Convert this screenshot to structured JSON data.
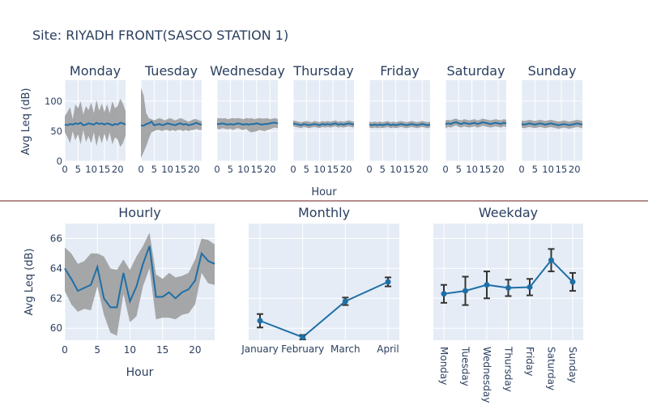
{
  "title": "Site: RIYADH FRONT(SASCO STATION 1)",
  "colors": {
    "line": "#1f6fa6",
    "band": "#9a9a9a",
    "panel_bg": "#e5ecf6",
    "grid": "#ffffff",
    "text": "#2a3f5f",
    "separator": "#6b1a1a",
    "error_bar": "#333333"
  },
  "chart_data": [
    {
      "type": "line",
      "name": "daily-small-multiples",
      "ylabel": "Avg Leq (dB)",
      "xlabel": "Hour",
      "xlim": [
        0,
        23
      ],
      "ylim": [
        0,
        135
      ],
      "xticks": [
        0,
        5,
        10,
        15,
        20
      ],
      "yticks": [
        0,
        50,
        100
      ],
      "x": [
        0,
        1,
        2,
        3,
        4,
        5,
        6,
        7,
        8,
        9,
        10,
        11,
        12,
        13,
        14,
        15,
        16,
        17,
        18,
        19,
        20,
        21,
        22,
        23
      ],
      "panels": [
        {
          "label": "Monday",
          "mean": [
            61,
            60,
            62,
            61,
            63,
            62,
            64,
            60,
            61,
            63,
            62,
            61,
            64,
            62,
            63,
            61,
            63,
            62,
            60,
            62,
            61,
            64,
            63,
            61
          ],
          "upper": [
            75,
            82,
            90,
            70,
            95,
            88,
            100,
            78,
            92,
            85,
            98,
            80,
            102,
            84,
            96,
            82,
            95,
            80,
            100,
            88,
            92,
            104,
            96,
            84
          ],
          "lower": [
            48,
            40,
            30,
            50,
            35,
            45,
            28,
            52,
            32,
            42,
            30,
            48,
            25,
            44,
            30,
            46,
            32,
            48,
            28,
            40,
            36,
            24,
            30,
            42
          ]
        },
        {
          "label": "Tuesday",
          "mean": [
            60,
            59,
            62,
            63,
            66,
            60,
            61,
            62,
            60,
            61,
            63,
            62,
            61,
            60,
            62,
            63,
            61,
            62,
            60,
            61,
            62,
            64,
            62,
            61
          ],
          "upper": [
            122,
            110,
            80,
            72,
            70,
            68,
            70,
            72,
            70,
            68,
            70,
            72,
            70,
            68,
            70,
            72,
            70,
            68,
            66,
            68,
            70,
            70,
            68,
            67
          ],
          "lower": [
            5,
            15,
            25,
            38,
            48,
            50,
            52,
            52,
            50,
            52,
            52,
            50,
            52,
            50,
            52,
            52,
            50,
            52,
            50,
            52,
            52,
            54,
            52,
            52
          ]
        },
        {
          "label": "Wednesday",
          "mean": [
            62,
            62,
            63,
            62,
            61,
            62,
            61,
            62,
            63,
            62,
            61,
            62,
            61,
            62,
            62,
            63,
            62,
            61,
            62,
            62,
            63,
            64,
            64,
            63
          ],
          "upper": [
            71,
            72,
            71,
            72,
            70,
            71,
            72,
            71,
            72,
            71,
            70,
            72,
            71,
            72,
            70,
            71,
            72,
            71,
            71,
            72,
            70,
            71,
            72,
            70
          ],
          "lower": [
            54,
            53,
            55,
            54,
            53,
            54,
            52,
            54,
            55,
            53,
            52,
            54,
            50,
            48,
            49,
            50,
            52,
            51,
            50,
            52,
            53,
            55,
            56,
            55
          ]
        },
        {
          "label": "Thursday",
          "mean": [
            63,
            62,
            61,
            60,
            62,
            61,
            60,
            61,
            62,
            61,
            60,
            62,
            61,
            62,
            61,
            62,
            63,
            61,
            62,
            61,
            62,
            63,
            62,
            61
          ],
          "upper": [
            68,
            67,
            66,
            65,
            66,
            67,
            66,
            65,
            67,
            66,
            65,
            67,
            66,
            67,
            66,
            67,
            68,
            66,
            67,
            66,
            67,
            68,
            67,
            66
          ],
          "lower": [
            58,
            57,
            56,
            55,
            57,
            56,
            55,
            56,
            57,
            56,
            55,
            57,
            56,
            57,
            56,
            57,
            58,
            56,
            57,
            56,
            57,
            58,
            57,
            56
          ]
        },
        {
          "label": "Friday",
          "mean": [
            61,
            60,
            61,
            60,
            61,
            60,
            61,
            62,
            60,
            61,
            60,
            61,
            62,
            61,
            60,
            61,
            62,
            61,
            60,
            61,
            62,
            61,
            60,
            61
          ],
          "upper": [
            66,
            65,
            66,
            65,
            66,
            65,
            66,
            67,
            65,
            66,
            65,
            66,
            67,
            66,
            65,
            66,
            67,
            66,
            65,
            66,
            67,
            66,
            65,
            66
          ],
          "lower": [
            56,
            55,
            56,
            55,
            56,
            55,
            56,
            57,
            55,
            56,
            55,
            56,
            57,
            56,
            55,
            56,
            57,
            56,
            55,
            56,
            57,
            56,
            55,
            56
          ]
        },
        {
          "label": "Saturday",
          "mean": [
            62,
            63,
            62,
            64,
            65,
            63,
            62,
            64,
            63,
            62,
            63,
            64,
            62,
            63,
            65,
            64,
            63,
            62,
            63,
            64,
            63,
            62,
            64,
            63
          ],
          "upper": [
            68,
            69,
            68,
            70,
            71,
            69,
            68,
            70,
            69,
            68,
            69,
            70,
            68,
            69,
            71,
            70,
            69,
            68,
            69,
            70,
            69,
            68,
            70,
            69
          ],
          "lower": [
            55,
            57,
            56,
            58,
            60,
            57,
            56,
            58,
            57,
            56,
            57,
            58,
            56,
            57,
            59,
            58,
            57,
            56,
            57,
            58,
            57,
            56,
            58,
            57
          ]
        },
        {
          "label": "Sunday",
          "mean": [
            62,
            61,
            62,
            63,
            62,
            61,
            62,
            63,
            62,
            61,
            62,
            63,
            62,
            61,
            60,
            61,
            62,
            61,
            60,
            61,
            62,
            63,
            62,
            61
          ],
          "upper": [
            68,
            67,
            68,
            69,
            68,
            67,
            68,
            69,
            68,
            67,
            68,
            69,
            68,
            67,
            66,
            67,
            68,
            67,
            66,
            67,
            68,
            69,
            68,
            67
          ],
          "lower": [
            56,
            55,
            56,
            57,
            56,
            55,
            56,
            57,
            56,
            55,
            56,
            57,
            56,
            55,
            54,
            55,
            56,
            55,
            54,
            55,
            56,
            57,
            56,
            55
          ]
        }
      ]
    },
    {
      "type": "line",
      "name": "hourly",
      "title": "Hourly",
      "xlabel": "Hour",
      "ylabel": "Avg Leq (dB)",
      "xlim": [
        0,
        23
      ],
      "ylim": [
        59.2,
        67
      ],
      "xticks": [
        0,
        5,
        10,
        15,
        20
      ],
      "yticks": [
        60,
        62,
        64,
        66
      ],
      "x": [
        0,
        1,
        2,
        3,
        4,
        5,
        6,
        7,
        8,
        9,
        10,
        11,
        12,
        13,
        14,
        15,
        16,
        17,
        18,
        19,
        20,
        21,
        22,
        23
      ],
      "mean": [
        64.0,
        63.3,
        62.5,
        62.7,
        62.9,
        64.1,
        62.0,
        61.4,
        61.4,
        63.7,
        61.8,
        62.8,
        64.3,
        65.5,
        62.1,
        62.1,
        62.4,
        62.0,
        62.4,
        62.6,
        63.2,
        65.0,
        64.5,
        64.3
      ],
      "upper": [
        65.4,
        65.0,
        64.3,
        64.5,
        65.0,
        65.0,
        64.8,
        64.0,
        63.9,
        64.6,
        63.9,
        64.8,
        65.5,
        66.4,
        63.6,
        63.3,
        63.7,
        63.4,
        63.5,
        63.7,
        64.6,
        66.0,
        65.9,
        65.6
      ],
      "lower": [
        62.5,
        61.6,
        61.1,
        61.3,
        61.2,
        62.8,
        60.9,
        59.7,
        59.5,
        62.3,
        60.4,
        60.8,
        62.8,
        64.0,
        60.6,
        60.7,
        60.7,
        60.6,
        60.9,
        61.0,
        61.6,
        63.7,
        63.0,
        62.9
      ]
    },
    {
      "type": "line",
      "name": "monthly",
      "title": "Monthly",
      "categories": [
        "January",
        "February",
        "March",
        "April"
      ],
      "values": [
        60.5,
        59.4,
        61.8,
        63.1
      ],
      "error": [
        0.45,
        0.15,
        0.25,
        0.3
      ],
      "ylim": [
        59.2,
        67
      ]
    },
    {
      "type": "line",
      "name": "weekday",
      "title": "Weekday",
      "categories": [
        "Monday",
        "Tuesday",
        "Wednesday",
        "Thursday",
        "Friday",
        "Saturday",
        "Sunday"
      ],
      "values": [
        62.3,
        62.5,
        62.9,
        62.7,
        62.75,
        64.55,
        63.1
      ],
      "error": [
        0.6,
        0.95,
        0.9,
        0.55,
        0.55,
        0.75,
        0.6
      ],
      "ylim": [
        59.2,
        67
      ]
    }
  ]
}
